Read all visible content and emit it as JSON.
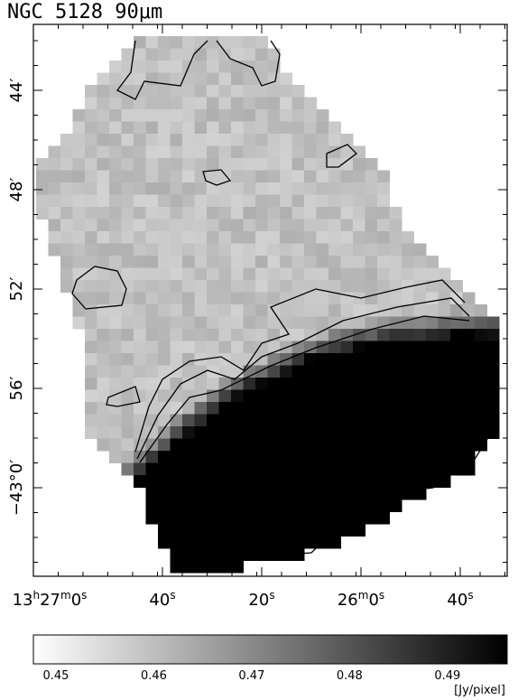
{
  "title": "NGC 5128  90μm",
  "y_axis": {
    "ticks": [
      "44′",
      "48′",
      "52′",
      "56′",
      "−43°0′"
    ]
  },
  "x_axis": {
    "ticks": [
      [
        "13",
        "h",
        "27",
        "m",
        "0",
        "s"
      ],
      [
        "40",
        "s"
      ],
      [
        "20",
        "s"
      ],
      [
        "26",
        "m",
        "0",
        "s"
      ],
      [
        "40",
        "s"
      ]
    ]
  },
  "colorbar": {
    "lim": [
      0.4477,
      0.4961
    ],
    "ticks": [
      0.45,
      0.46,
      0.47,
      0.48,
      0.49
    ],
    "unit": "[Jy/pixel]"
  }
}
